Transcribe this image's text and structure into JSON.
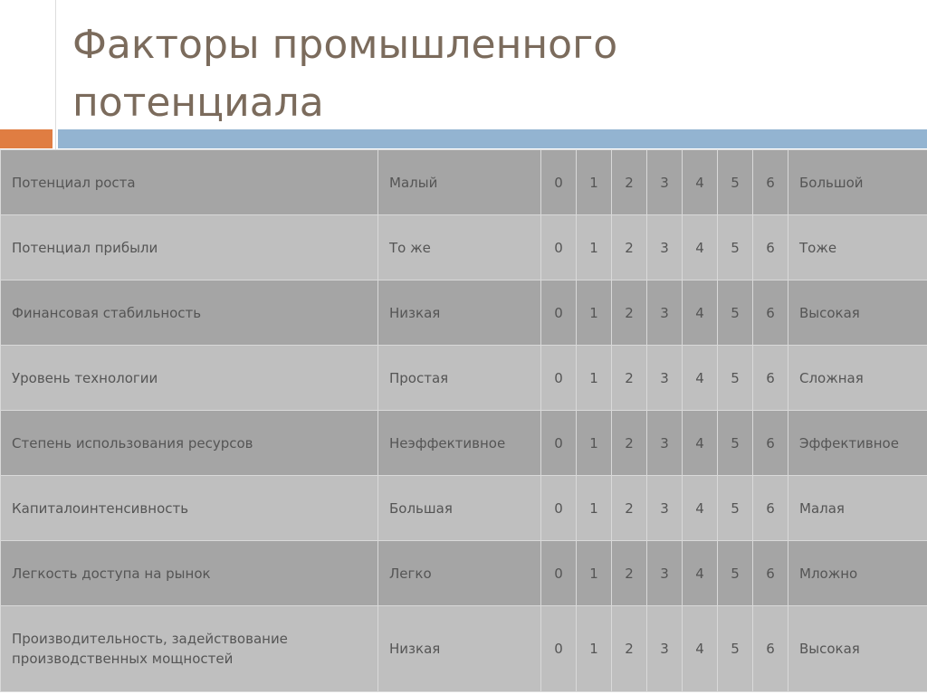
{
  "header": {
    "title_lines": [
      "Факторы промышленного",
      "потенциала"
    ]
  },
  "table": {
    "rows": [
      [
        "Потенциал роста",
        "Малый",
        0,
        1,
        2,
        3,
        4,
        5,
        6,
        "Большой"
      ],
      [
        "Потенциал прибыли",
        "То же",
        0,
        1,
        2,
        3,
        4,
        5,
        6,
        "Тоже"
      ],
      [
        "Финансовая стабильность",
        "Низкая",
        0,
        1,
        2,
        3,
        4,
        5,
        6,
        "Высокая"
      ],
      [
        "Уровень технологии",
        "Простая",
        0,
        1,
        2,
        3,
        4,
        5,
        6,
        "Сложная"
      ],
      [
        "Степень использования ресурсов",
        "Неэффективное",
        0,
        1,
        2,
        3,
        4,
        5,
        6,
        "Эффективное"
      ],
      [
        "Капиталоинтенсивность",
        "Большая",
        0,
        1,
        2,
        3,
        4,
        5,
        6,
        "Малая"
      ],
      [
        "Легкость доступа на рынок",
        "Легко",
        0,
        1,
        2,
        3,
        4,
        5,
        6,
        "Мложно"
      ],
      [
        "Производительность, задействование производственных мощностей",
        "Низкая",
        0,
        1,
        2,
        3,
        4,
        5,
        6,
        "Высокая"
      ]
    ]
  }
}
